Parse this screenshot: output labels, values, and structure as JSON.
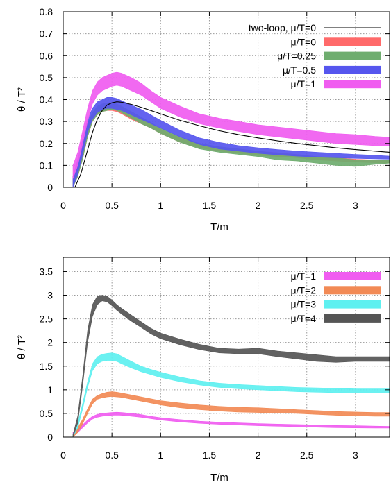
{
  "chart_data": [
    {
      "type": "area",
      "title": "",
      "xlabel": "T/m",
      "ylabel": "θ / T²",
      "xlim": [
        0,
        3.35
      ],
      "ylim": [
        0,
        0.8
      ],
      "xticks": [
        "0",
        "0.5",
        "1",
        "1.5",
        "2",
        "2.5",
        "3"
      ],
      "yticks": [
        "0",
        "0.1",
        "0.2",
        "0.3",
        "0.4",
        "0.5",
        "0.6",
        "0.7",
        "0.8"
      ],
      "grid": true,
      "legend_position": "top-right",
      "line_series": {
        "name": "two-loop, μ/T=0",
        "color": "#000000",
        "x": [
          0.12,
          0.18,
          0.25,
          0.3,
          0.35,
          0.4,
          0.45,
          0.5,
          0.55,
          0.6,
          0.7,
          0.8,
          0.9,
          1.0,
          1.2,
          1.4,
          1.6,
          1.8,
          2.0,
          2.2,
          2.4,
          2.6,
          2.8,
          3.0,
          3.2,
          3.35
        ],
        "y": [
          0.0,
          0.06,
          0.17,
          0.25,
          0.31,
          0.35,
          0.375,
          0.385,
          0.39,
          0.388,
          0.378,
          0.365,
          0.35,
          0.335,
          0.305,
          0.28,
          0.258,
          0.24,
          0.225,
          0.212,
          0.2,
          0.19,
          0.18,
          0.172,
          0.165,
          0.16
        ]
      },
      "series": [
        {
          "name": "μ/T=0",
          "color": "#ff6a6a",
          "x": [
            0.1,
            0.15,
            0.2,
            0.25,
            0.3,
            0.35,
            0.4,
            0.45,
            0.5,
            0.55,
            0.6,
            0.7,
            0.8,
            0.9,
            1.0,
            1.2,
            1.4,
            1.6,
            1.8,
            2.0,
            2.2,
            2.4,
            2.6,
            2.8,
            3.0,
            3.2,
            3.35
          ],
          "lower": [
            0.0,
            0.05,
            0.13,
            0.23,
            0.3,
            0.33,
            0.345,
            0.35,
            0.35,
            0.345,
            0.335,
            0.31,
            0.29,
            0.27,
            0.245,
            0.205,
            0.18,
            0.165,
            0.155,
            0.145,
            0.14,
            0.135,
            0.125,
            0.12,
            0.115,
            0.112,
            0.11
          ],
          "upper": [
            0.05,
            0.12,
            0.2,
            0.29,
            0.34,
            0.365,
            0.375,
            0.38,
            0.38,
            0.375,
            0.365,
            0.34,
            0.315,
            0.29,
            0.265,
            0.225,
            0.2,
            0.185,
            0.175,
            0.165,
            0.158,
            0.15,
            0.14,
            0.135,
            0.128,
            0.125,
            0.122
          ]
        },
        {
          "name": "μ/T=0.25",
          "color": "#6fad6f",
          "x": [
            0.1,
            0.15,
            0.2,
            0.25,
            0.3,
            0.35,
            0.4,
            0.45,
            0.5,
            0.55,
            0.6,
            0.7,
            0.8,
            0.9,
            1.0,
            1.2,
            1.4,
            1.6,
            1.8,
            2.0,
            2.2,
            2.4,
            2.6,
            2.8,
            3.0,
            3.2,
            3.35
          ],
          "lower": [
            0.0,
            0.05,
            0.13,
            0.23,
            0.3,
            0.33,
            0.345,
            0.35,
            0.355,
            0.35,
            0.34,
            0.315,
            0.29,
            0.27,
            0.245,
            0.205,
            0.175,
            0.16,
            0.15,
            0.14,
            0.125,
            0.12,
            0.11,
            0.1,
            0.095,
            0.105,
            0.11
          ],
          "upper": [
            0.05,
            0.12,
            0.2,
            0.29,
            0.34,
            0.37,
            0.38,
            0.385,
            0.385,
            0.38,
            0.37,
            0.345,
            0.32,
            0.295,
            0.27,
            0.23,
            0.2,
            0.185,
            0.175,
            0.165,
            0.155,
            0.148,
            0.14,
            0.135,
            0.125,
            0.125,
            0.122
          ]
        },
        {
          "name": "μ/T=0.5",
          "color": "#5656ee",
          "x": [
            0.1,
            0.15,
            0.2,
            0.25,
            0.3,
            0.35,
            0.4,
            0.45,
            0.5,
            0.55,
            0.6,
            0.7,
            0.8,
            0.9,
            1.0,
            1.2,
            1.4,
            1.6,
            1.8,
            2.0,
            2.2,
            2.4,
            2.6,
            2.8,
            3.0,
            3.2,
            3.35
          ],
          "lower": [
            0.0,
            0.06,
            0.15,
            0.25,
            0.31,
            0.34,
            0.355,
            0.36,
            0.36,
            0.355,
            0.35,
            0.33,
            0.31,
            0.29,
            0.27,
            0.23,
            0.195,
            0.175,
            0.165,
            0.155,
            0.148,
            0.142,
            0.138,
            0.135,
            0.132,
            0.13,
            0.128
          ],
          "upper": [
            0.05,
            0.13,
            0.22,
            0.31,
            0.36,
            0.39,
            0.4,
            0.41,
            0.41,
            0.405,
            0.395,
            0.375,
            0.355,
            0.33,
            0.305,
            0.26,
            0.225,
            0.205,
            0.19,
            0.18,
            0.172,
            0.165,
            0.16,
            0.155,
            0.15,
            0.146,
            0.142
          ]
        },
        {
          "name": "μ/T=1",
          "color": "#f05cf0",
          "x": [
            0.1,
            0.15,
            0.2,
            0.25,
            0.3,
            0.35,
            0.4,
            0.45,
            0.5,
            0.55,
            0.6,
            0.7,
            0.8,
            0.9,
            1.0,
            1.2,
            1.4,
            1.6,
            1.8,
            2.0,
            2.2,
            2.4,
            2.6,
            2.8,
            3.0,
            3.2,
            3.35
          ],
          "lower": [
            0.04,
            0.1,
            0.2,
            0.3,
            0.38,
            0.42,
            0.44,
            0.45,
            0.46,
            0.465,
            0.46,
            0.44,
            0.42,
            0.39,
            0.36,
            0.32,
            0.29,
            0.27,
            0.255,
            0.24,
            0.23,
            0.22,
            0.21,
            0.2,
            0.195,
            0.19,
            0.19
          ],
          "upper": [
            0.1,
            0.16,
            0.26,
            0.36,
            0.44,
            0.48,
            0.5,
            0.51,
            0.52,
            0.525,
            0.52,
            0.5,
            0.475,
            0.44,
            0.41,
            0.37,
            0.335,
            0.315,
            0.3,
            0.285,
            0.275,
            0.265,
            0.255,
            0.245,
            0.24,
            0.232,
            0.228
          ]
        }
      ]
    },
    {
      "type": "area",
      "title": "",
      "xlabel": "T/m",
      "ylabel": "θ / T²",
      "xlim": [
        0,
        3.35
      ],
      "ylim": [
        0,
        3.8
      ],
      "xticks": [
        "0",
        "0.5",
        "1",
        "1.5",
        "2",
        "2.5",
        "3"
      ],
      "yticks": [
        "0",
        "0.5",
        "1",
        "1.5",
        "2",
        "2.5",
        "3",
        "3.5"
      ],
      "grid": true,
      "legend_position": "top-right",
      "series": [
        {
          "name": "μ/T=1",
          "color": "#f05cf0",
          "x": [
            0.1,
            0.15,
            0.2,
            0.25,
            0.3,
            0.35,
            0.4,
            0.45,
            0.5,
            0.55,
            0.6,
            0.7,
            0.8,
            0.9,
            1.0,
            1.2,
            1.4,
            1.6,
            1.8,
            2.0,
            2.2,
            2.4,
            2.6,
            2.8,
            3.0,
            3.2,
            3.35
          ],
          "lower": [
            0.04,
            0.1,
            0.2,
            0.3,
            0.38,
            0.42,
            0.44,
            0.45,
            0.46,
            0.465,
            0.46,
            0.44,
            0.42,
            0.39,
            0.36,
            0.32,
            0.29,
            0.27,
            0.255,
            0.24,
            0.23,
            0.22,
            0.21,
            0.2,
            0.195,
            0.19,
            0.19
          ],
          "upper": [
            0.1,
            0.16,
            0.26,
            0.36,
            0.44,
            0.48,
            0.5,
            0.51,
            0.52,
            0.525,
            0.52,
            0.5,
            0.475,
            0.44,
            0.41,
            0.37,
            0.335,
            0.315,
            0.3,
            0.285,
            0.275,
            0.265,
            0.255,
            0.245,
            0.24,
            0.232,
            0.228
          ]
        },
        {
          "name": "μ/T=2",
          "color": "#f28a55",
          "x": [
            0.1,
            0.15,
            0.2,
            0.25,
            0.3,
            0.35,
            0.4,
            0.45,
            0.5,
            0.55,
            0.6,
            0.7,
            0.8,
            0.9,
            1.0,
            1.2,
            1.4,
            1.6,
            1.8,
            2.0,
            2.2,
            2.4,
            2.6,
            2.8,
            3.0,
            3.2,
            3.35
          ],
          "lower": [
            0.0,
            0.1,
            0.28,
            0.5,
            0.7,
            0.8,
            0.83,
            0.85,
            0.86,
            0.85,
            0.84,
            0.8,
            0.76,
            0.72,
            0.68,
            0.62,
            0.58,
            0.55,
            0.53,
            0.52,
            0.51,
            0.5,
            0.48,
            0.46,
            0.45,
            0.44,
            0.44
          ],
          "upper": [
            0.05,
            0.2,
            0.38,
            0.6,
            0.8,
            0.88,
            0.92,
            0.95,
            0.96,
            0.95,
            0.93,
            0.89,
            0.85,
            0.81,
            0.77,
            0.72,
            0.68,
            0.65,
            0.63,
            0.62,
            0.6,
            0.58,
            0.56,
            0.54,
            0.53,
            0.52,
            0.52
          ]
        },
        {
          "name": "μ/T=3",
          "color": "#5ef0f0",
          "x": [
            0.1,
            0.15,
            0.2,
            0.25,
            0.3,
            0.35,
            0.4,
            0.45,
            0.5,
            0.55,
            0.6,
            0.7,
            0.8,
            0.9,
            1.0,
            1.2,
            1.4,
            1.6,
            1.8,
            2.0,
            2.2,
            2.4,
            2.6,
            2.8,
            3.0,
            3.2,
            3.35
          ],
          "lower": [
            0.0,
            0.2,
            0.6,
            1.05,
            1.4,
            1.55,
            1.6,
            1.62,
            1.62,
            1.6,
            1.55,
            1.46,
            1.38,
            1.32,
            1.26,
            1.17,
            1.1,
            1.05,
            1.02,
            1.0,
            0.98,
            0.96,
            0.95,
            0.94,
            0.93,
            0.93,
            0.93
          ],
          "upper": [
            0.05,
            0.3,
            0.72,
            1.17,
            1.55,
            1.7,
            1.75,
            1.77,
            1.78,
            1.76,
            1.71,
            1.6,
            1.5,
            1.43,
            1.37,
            1.27,
            1.19,
            1.14,
            1.11,
            1.09,
            1.07,
            1.05,
            1.04,
            1.03,
            1.02,
            1.02,
            1.02
          ]
        },
        {
          "name": "μ/T=4",
          "color": "#555555",
          "x": [
            0.1,
            0.15,
            0.2,
            0.25,
            0.3,
            0.35,
            0.4,
            0.45,
            0.5,
            0.55,
            0.6,
            0.7,
            0.8,
            0.9,
            1.0,
            1.2,
            1.4,
            1.6,
            1.8,
            2.0,
            2.2,
            2.4,
            2.6,
            2.8,
            3.0,
            3.2,
            3.35
          ],
          "lower": [
            0.0,
            0.3,
            1.1,
            2.0,
            2.55,
            2.8,
            2.88,
            2.86,
            2.78,
            2.68,
            2.6,
            2.45,
            2.32,
            2.18,
            2.08,
            1.95,
            1.85,
            1.78,
            1.76,
            1.76,
            1.7,
            1.65,
            1.6,
            1.58,
            1.6,
            1.6,
            1.6
          ],
          "upper": [
            0.05,
            0.45,
            1.3,
            2.25,
            2.8,
            2.98,
            3.0,
            2.98,
            2.9,
            2.8,
            2.72,
            2.58,
            2.44,
            2.3,
            2.2,
            2.07,
            1.96,
            1.88,
            1.86,
            1.88,
            1.82,
            1.78,
            1.74,
            1.7,
            1.7,
            1.7,
            1.7
          ]
        }
      ]
    }
  ]
}
